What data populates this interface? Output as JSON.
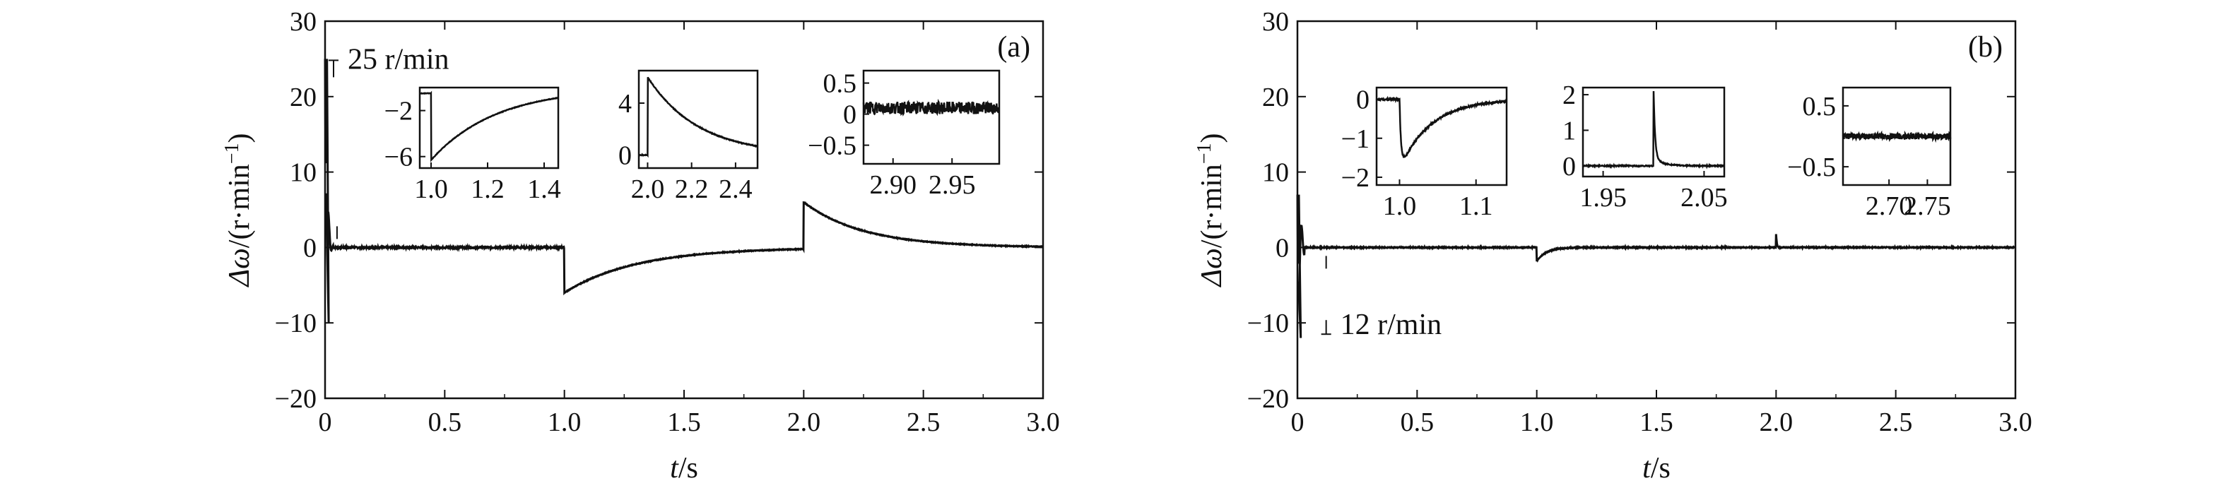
{
  "chart_data": [
    {
      "panel": "(a)",
      "type": "line",
      "xlabel_var": "t",
      "xlabel_unit": "/s",
      "ylabel_sym": "Δω",
      "ylabel_unit_open": "/(r·min",
      "ylabel_unit_exp": "−1",
      "ylabel_unit_close": ")",
      "xlim": [
        0,
        3.0
      ],
      "ylim": [
        -20,
        30
      ],
      "xticks": [
        0,
        0.5,
        1.0,
        1.5,
        2.0,
        2.5,
        3.0
      ],
      "xtick_labels": [
        "0",
        "0.5",
        "1.0",
        "1.5",
        "2.0",
        "2.5",
        "3.0"
      ],
      "yticks": [
        -20,
        -10,
        0,
        10,
        20,
        30
      ],
      "ytick_labels": [
        "−20",
        "−10",
        "0",
        "10",
        "20",
        "30"
      ],
      "annotation": "25 r/min",
      "events": [
        {
          "t": 0.0,
          "description": "startup transient",
          "peak": 25,
          "trough": -10
        },
        {
          "t": 1.0,
          "description": "step drop",
          "peak": -6,
          "settle_to": 0,
          "tau": 0.3
        },
        {
          "t": 2.0,
          "description": "step rise",
          "peak": 6,
          "settle_to": 0,
          "tau": 0.25
        }
      ],
      "insets": [
        {
          "xlim": [
            0.96,
            1.45
          ],
          "ylim": [
            -7,
            0
          ],
          "xticks": [
            1.0,
            1.2,
            1.4
          ],
          "xtick_labels": [
            "1.0",
            "1.2",
            "1.4"
          ],
          "yticks": [
            -2,
            -6
          ],
          "ytick_labels": [
            "−2",
            "−6"
          ],
          "prestep": -0.5,
          "peak": -6.3,
          "tau": 0.23,
          "step_at": 1.0
        },
        {
          "xlim": [
            1.96,
            2.5
          ],
          "ylim": [
            -1,
            6.5
          ],
          "xticks": [
            2.0,
            2.2,
            2.4
          ],
          "xtick_labels": [
            "2.0",
            "2.2",
            "2.4"
          ],
          "yticks": [
            0,
            4
          ],
          "ytick_labels": [
            "0",
            "4"
          ],
          "prestep": 0.0,
          "peak": 6.0,
          "tau": 0.23,
          "step_at": 2.0
        },
        {
          "xlim": [
            2.875,
            2.99
          ],
          "ylim": [
            -0.8,
            0.7
          ],
          "xticks": [
            2.9,
            2.95
          ],
          "xtick_labels": [
            "2.90",
            "2.95"
          ],
          "yticks": [
            0.5,
            0,
            -0.5
          ],
          "ytick_labels": [
            "0.5",
            "0",
            "−0.5"
          ],
          "noise_level": 0.1,
          "mean": 0.1
        }
      ]
    },
    {
      "panel": "(b)",
      "type": "line",
      "xlabel_var": "t",
      "xlabel_unit": "/s",
      "ylabel_sym": "Δω",
      "ylabel_unit_open": "/(r·min",
      "ylabel_unit_exp": "−1",
      "ylabel_unit_close": ")",
      "xlim": [
        0,
        3.0
      ],
      "ylim": [
        -20,
        30
      ],
      "xticks": [
        0,
        0.5,
        1.0,
        1.5,
        2.0,
        2.5,
        3.0
      ],
      "xtick_labels": [
        "0",
        "0.5",
        "1.0",
        "1.5",
        "2.0",
        "2.5",
        "3.0"
      ],
      "yticks": [
        -20,
        -10,
        0,
        10,
        20,
        30
      ],
      "ytick_labels": [
        "−20",
        "−10",
        "0",
        "10",
        "20",
        "30"
      ],
      "annotation": "12 r/min",
      "events": [
        {
          "t": 0.0,
          "description": "startup transient",
          "peak": 7,
          "trough": -12
        },
        {
          "t": 1.0,
          "description": "small dip",
          "peak": -1.8,
          "settle_to": 0,
          "tau": 0.04
        },
        {
          "t": 2.0,
          "description": "small spike",
          "peak": 1.8,
          "settle_to": 0,
          "tau": 0.003
        }
      ],
      "insets": [
        {
          "xlim": [
            0.97,
            1.14
          ],
          "ylim": [
            -2.2,
            0.3
          ],
          "xticks": [
            1.0,
            1.1
          ],
          "xtick_labels": [
            "1.0",
            "1.1"
          ],
          "yticks": [
            0,
            -1,
            -2
          ],
          "ytick_labels": [
            "0",
            "−1",
            "−2"
          ],
          "kind": "dip"
        },
        {
          "xlim": [
            1.93,
            2.07
          ],
          "ylim": [
            -0.3,
            2.2
          ],
          "xticks": [
            1.95,
            2.05
          ],
          "xtick_labels": [
            "1.95",
            "2.05"
          ],
          "yticks": [
            2,
            1,
            0
          ],
          "ytick_labels": [
            "2",
            "1",
            "0"
          ],
          "kind": "spike"
        },
        {
          "xlim": [
            2.64,
            2.78
          ],
          "ylim": [
            -0.8,
            0.8
          ],
          "xticks": [
            2.7,
            2.75
          ],
          "xtick_labels": [
            "2.70",
            "2.75"
          ],
          "yticks": [
            0.5,
            -0.5
          ],
          "ytick_labels": [
            "0.5",
            "−0.5"
          ],
          "noise_level": 0.05,
          "mean": 0.0
        }
      ]
    }
  ]
}
